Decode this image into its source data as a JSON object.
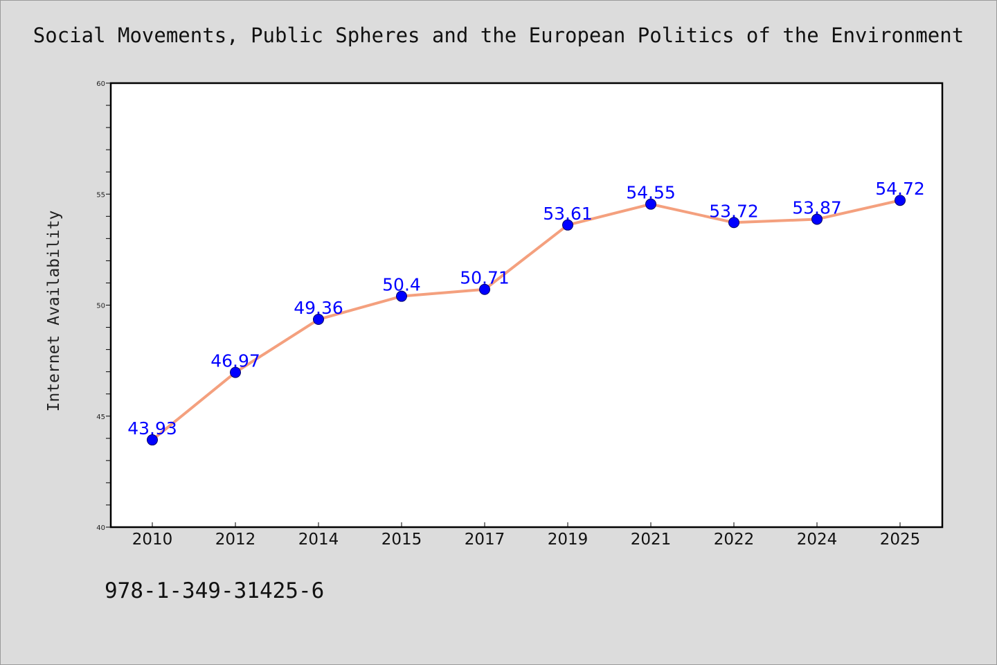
{
  "colors": {
    "background": "#dcdcdc",
    "plot_background": "#ffffff",
    "line": "#f4a07e",
    "marker": "#0000ff",
    "data_label": "#0000ff",
    "axis": "#000000"
  },
  "footer": {
    "isbn": "978-1-349-31425-6"
  },
  "chart_data": {
    "type": "line",
    "title": "Social Movements, Public Spheres and the European Politics of the Environment",
    "xlabel": "",
    "ylabel": "Internet Availability",
    "categories": [
      "2010",
      "2012",
      "2014",
      "2015",
      "2017",
      "2019",
      "2021",
      "2022",
      "2024",
      "2025"
    ],
    "series": [
      {
        "values": [
          43.93,
          46.97,
          49.36,
          50.4,
          50.71,
          53.61,
          54.55,
          53.72,
          53.87,
          54.72
        ],
        "labels": [
          "43.93",
          "46.97",
          "49.36",
          "50.4",
          "50.71",
          "53.61",
          "54.55",
          "53.72",
          "53.87",
          "54.72"
        ]
      }
    ],
    "ylim": [
      40,
      60
    ],
    "yticks": [
      "40",
      "45",
      "50",
      "55",
      "60"
    ],
    "grid": false,
    "legend": "none"
  }
}
